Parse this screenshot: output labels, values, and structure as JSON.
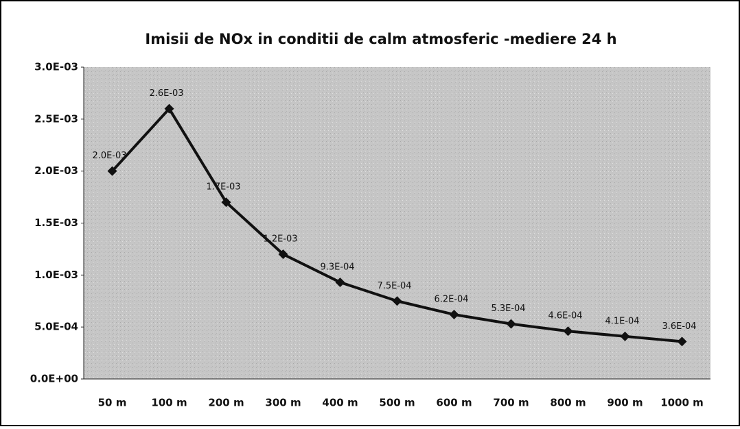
{
  "chart_data": {
    "type": "line",
    "title": "Imisii de NOx  in conditii de calm atmosferic -mediere 24 h",
    "categories": [
      "50 m",
      "100 m",
      "200 m",
      "300 m",
      "400 m",
      "500 m",
      "600 m",
      "700 m",
      "800 m",
      "900 m",
      "1000 m"
    ],
    "values": [
      0.002,
      0.0026,
      0.0017,
      0.0012,
      0.00093,
      0.00075,
      0.00062,
      0.00053,
      0.00046,
      0.00041,
      0.00036
    ],
    "value_labels": [
      "2.0E-03",
      "2.6E-03",
      "1.7E-03",
      "1.2E-03",
      "9.3E-04",
      "7.5E-04",
      "6.2E-04",
      "5.3E-04",
      "4.6E-04",
      "4.1E-04",
      "3.6E-04"
    ],
    "color": "#111111",
    "ylim": [
      0,
      0.003
    ],
    "yticks": [
      {
        "value": 0,
        "label": "0.0E+00"
      },
      {
        "value": 0.0005,
        "label": "5.0E-04"
      },
      {
        "value": 0.001,
        "label": "1.0E-03"
      },
      {
        "value": 0.0015,
        "label": "1.5E-03"
      },
      {
        "value": 0.002,
        "label": "2.0E-03"
      },
      {
        "value": 0.0025,
        "label": "2.5E-03"
      },
      {
        "value": 0.003,
        "label": "3.0E-03"
      }
    ],
    "grid": false
  }
}
